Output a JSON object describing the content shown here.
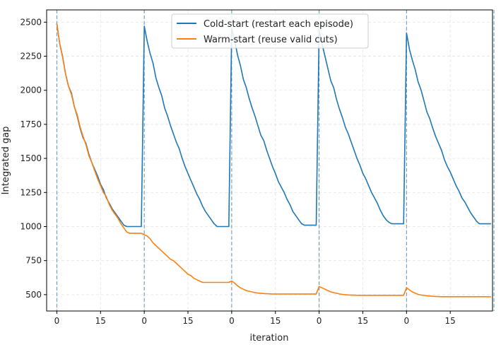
{
  "chart_data": {
    "type": "line",
    "title": "",
    "xlabel": "iteration",
    "ylabel": "Integrated gap",
    "x_range": [
      -3.5,
      149.5
    ],
    "ylim": [
      380,
      2590
    ],
    "y_ticks": [
      500,
      750,
      1000,
      1250,
      1500,
      1750,
      2000,
      2250,
      2500
    ],
    "x_ticks": [
      {
        "x": 0,
        "label": "0"
      },
      {
        "x": 15,
        "label": "15"
      },
      {
        "x": 30,
        "label": "0"
      },
      {
        "x": 45,
        "label": "15"
      },
      {
        "x": 60,
        "label": "0"
      },
      {
        "x": 75,
        "label": "15"
      },
      {
        "x": 90,
        "label": "0"
      },
      {
        "x": 105,
        "label": "15"
      },
      {
        "x": 120,
        "label": "0"
      },
      {
        "x": 135,
        "label": "15"
      }
    ],
    "episode_boundaries": [
      0,
      30,
      60,
      90,
      120,
      150
    ],
    "grid": true,
    "legend_position": "upper-center",
    "colors": {
      "cold": "#1f77b4",
      "warm": "#ff7f0e",
      "boundary": "#1f77b4"
    },
    "series": [
      {
        "name": "Cold-start (restart each episode)",
        "x": [
          0,
          1,
          2,
          3,
          4,
          5,
          6,
          7,
          8,
          9,
          10,
          11,
          12,
          13,
          14,
          15,
          16,
          17,
          18,
          19,
          20,
          21,
          22,
          23,
          24,
          25,
          26,
          27,
          28,
          29,
          30,
          31,
          32,
          33,
          34,
          35,
          36,
          37,
          38,
          39,
          40,
          41,
          42,
          43,
          44,
          45,
          46,
          47,
          48,
          49,
          50,
          51,
          52,
          53,
          54,
          55,
          56,
          57,
          58,
          59,
          60,
          61,
          62,
          63,
          64,
          65,
          66,
          67,
          68,
          69,
          70,
          71,
          72,
          73,
          74,
          75,
          76,
          77,
          78,
          79,
          80,
          81,
          82,
          83,
          84,
          85,
          86,
          87,
          88,
          89,
          90,
          91,
          92,
          93,
          94,
          95,
          96,
          97,
          98,
          99,
          100,
          101,
          102,
          103,
          104,
          105,
          106,
          107,
          108,
          109,
          110,
          111,
          112,
          113,
          114,
          115,
          116,
          117,
          118,
          119,
          120,
          121,
          122,
          123,
          124,
          125,
          126,
          127,
          128,
          129,
          130,
          131,
          132,
          133,
          134,
          135,
          136,
          137,
          138,
          139,
          140,
          141,
          142,
          143,
          144,
          145,
          146,
          147,
          148,
          149
        ],
        "y": [
          2490,
          2340,
          2245,
          2120,
          2030,
          1980,
          1880,
          1810,
          1720,
          1650,
          1610,
          1530,
          1470,
          1420,
          1370,
          1310,
          1270,
          1210,
          1170,
          1130,
          1100,
          1070,
          1040,
          1010,
          1000,
          1000,
          1000,
          1000,
          1000,
          1000,
          2470,
          2360,
          2270,
          2200,
          2090,
          2020,
          1960,
          1870,
          1810,
          1740,
          1680,
          1620,
          1570,
          1500,
          1440,
          1390,
          1340,
          1290,
          1240,
          1200,
          1150,
          1110,
          1080,
          1050,
          1020,
          1000,
          1000,
          1000,
          1000,
          1000,
          2450,
          2370,
          2260,
          2180,
          2080,
          2020,
          1940,
          1870,
          1810,
          1740,
          1670,
          1630,
          1560,
          1500,
          1440,
          1390,
          1330,
          1290,
          1250,
          1200,
          1160,
          1110,
          1080,
          1050,
          1020,
          1010,
          1010,
          1010,
          1010,
          1010,
          2440,
          2340,
          2250,
          2160,
          2070,
          2020,
          1930,
          1860,
          1800,
          1730,
          1680,
          1620,
          1560,
          1500,
          1450,
          1390,
          1350,
          1300,
          1250,
          1210,
          1170,
          1120,
          1080,
          1050,
          1030,
          1020,
          1020,
          1020,
          1020,
          1020,
          2420,
          2300,
          2220,
          2150,
          2060,
          2000,
          1920,
          1840,
          1790,
          1720,
          1660,
          1610,
          1560,
          1490,
          1440,
          1400,
          1350,
          1300,
          1260,
          1210,
          1180,
          1140,
          1100,
          1070,
          1040,
          1020,
          1020,
          1020,
          1020,
          1020
        ]
      },
      {
        "name": "Warm-start (reuse valid cuts)",
        "x": [
          0,
          1,
          2,
          3,
          4,
          5,
          6,
          7,
          8,
          9,
          10,
          11,
          12,
          13,
          14,
          15,
          16,
          17,
          18,
          19,
          20,
          21,
          22,
          23,
          24,
          25,
          26,
          27,
          28,
          29,
          30,
          31,
          32,
          33,
          34,
          35,
          36,
          37,
          38,
          39,
          40,
          41,
          42,
          43,
          44,
          45,
          46,
          47,
          48,
          49,
          50,
          51,
          52,
          53,
          54,
          55,
          56,
          57,
          58,
          59,
          60,
          61,
          62,
          63,
          64,
          65,
          66,
          67,
          68,
          69,
          70,
          71,
          72,
          73,
          74,
          75,
          76,
          77,
          78,
          79,
          80,
          81,
          82,
          83,
          84,
          85,
          86,
          87,
          88,
          89,
          90,
          91,
          92,
          93,
          94,
          95,
          96,
          97,
          98,
          99,
          100,
          101,
          102,
          103,
          104,
          105,
          106,
          107,
          108,
          109,
          110,
          111,
          112,
          113,
          114,
          115,
          116,
          117,
          118,
          119,
          120,
          121,
          122,
          123,
          124,
          125,
          126,
          127,
          128,
          129,
          130,
          131,
          132,
          133,
          134,
          135,
          136,
          137,
          138,
          139,
          140,
          141,
          142,
          143,
          144,
          145,
          146,
          147,
          148,
          149
        ],
        "y": [
          2490,
          2340,
          2240,
          2120,
          2030,
          1970,
          1880,
          1820,
          1730,
          1660,
          1600,
          1520,
          1470,
          1410,
          1350,
          1300,
          1250,
          1220,
          1160,
          1120,
          1090,
          1060,
          1020,
          990,
          960,
          950,
          950,
          950,
          950,
          950,
          940,
          930,
          910,
          880,
          860,
          840,
          820,
          800,
          780,
          760,
          750,
          730,
          710,
          690,
          670,
          650,
          640,
          620,
          610,
          600,
          590,
          590,
          590,
          590,
          590,
          590,
          590,
          590,
          590,
          590,
          600,
          585,
          565,
          550,
          540,
          530,
          525,
          520,
          515,
          512,
          510,
          508,
          507,
          506,
          505,
          505,
          505,
          505,
          505,
          505,
          505,
          505,
          505,
          505,
          505,
          505,
          505,
          505,
          505,
          505,
          560,
          550,
          540,
          530,
          520,
          515,
          510,
          505,
          502,
          500,
          498,
          497,
          496,
          495,
          495,
          495,
          495,
          495,
          495,
          495,
          495,
          495,
          495,
          495,
          495,
          495,
          495,
          495,
          495,
          495,
          550,
          535,
          520,
          510,
          502,
          497,
          494,
          492,
          490,
          488,
          487,
          486,
          485,
          485,
          485,
          485,
          485,
          485,
          485,
          485,
          485,
          485,
          485,
          485,
          485,
          485,
          485,
          485,
          485,
          485
        ]
      }
    ]
  }
}
